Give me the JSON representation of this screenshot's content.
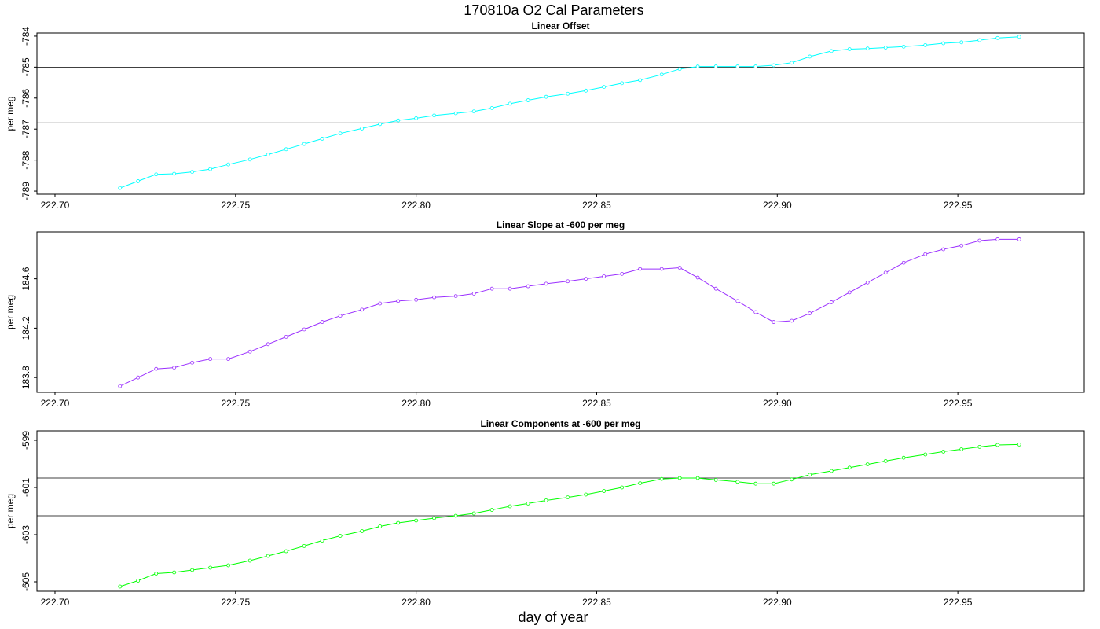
{
  "figure": {
    "title": "170810a   O2 Cal Parameters",
    "xlabel": "day of year"
  },
  "chart_data": [
    {
      "type": "line",
      "title": "Linear Offset",
      "ylabel": "per meg",
      "xlim": [
        222.695,
        222.985
      ],
      "ylim": [
        -789.1,
        -783.9
      ],
      "xticks": [
        "222.70",
        "222.75",
        "222.80",
        "222.85",
        "222.90",
        "222.95"
      ],
      "yticks": [
        "-789",
        "-788",
        "-787",
        "-786",
        "-785",
        "-784"
      ],
      "hlines": [
        -785.0,
        -786.8
      ],
      "color": "#00ffff",
      "series": [
        {
          "x": [
            222.718,
            222.723,
            222.728,
            222.733,
            222.738,
            222.743,
            222.748,
            222.754,
            222.759,
            222.764,
            222.769,
            222.774,
            222.779,
            222.785,
            222.79,
            222.795,
            222.8,
            222.805,
            222.811,
            222.816,
            222.821,
            222.826,
            222.831,
            222.836,
            222.842,
            222.847,
            222.852,
            222.857,
            222.862,
            222.868,
            222.873,
            222.878,
            222.883,
            222.889,
            222.894,
            222.899,
            222.904,
            222.909,
            222.915,
            222.92,
            222.925,
            222.93,
            222.935,
            222.941,
            222.946,
            222.951,
            222.956,
            222.961,
            222.967
          ],
          "values": [
            -788.9,
            -788.68,
            -788.46,
            -788.44,
            -788.38,
            -788.29,
            -788.14,
            -787.98,
            -787.82,
            -787.65,
            -787.48,
            -787.31,
            -787.14,
            -786.98,
            -786.84,
            -786.72,
            -786.65,
            -786.56,
            -786.49,
            -786.43,
            -786.32,
            -786.18,
            -786.07,
            -785.96,
            -785.86,
            -785.76,
            -785.64,
            -785.52,
            -785.42,
            -785.24,
            -785.06,
            -784.98,
            -784.98,
            -784.98,
            -784.98,
            -784.94,
            -784.86,
            -784.66,
            -784.48,
            -784.42,
            -784.4,
            -784.37,
            -784.34,
            -784.29,
            -784.23,
            -784.2,
            -784.13,
            -784.06,
            -784.02
          ]
        }
      ]
    },
    {
      "type": "line",
      "title": "Linear Slope at -600 per meg",
      "ylabel": "per meg",
      "xlim": [
        222.695,
        222.985
      ],
      "ylim": [
        183.68,
        184.98
      ],
      "xticks": [
        "222.70",
        "222.75",
        "222.80",
        "222.85",
        "222.90",
        "222.95"
      ],
      "yticks": [
        "183.8",
        "184.2",
        "184.6"
      ],
      "hlines": [],
      "color": "#9b30ff",
      "series": [
        {
          "x": [
            222.718,
            222.723,
            222.728,
            222.733,
            222.738,
            222.743,
            222.748,
            222.754,
            222.759,
            222.764,
            222.769,
            222.774,
            222.779,
            222.785,
            222.79,
            222.795,
            222.8,
            222.805,
            222.811,
            222.816,
            222.821,
            222.826,
            222.831,
            222.836,
            222.842,
            222.847,
            222.852,
            222.857,
            222.862,
            222.868,
            222.873,
            222.878,
            222.883,
            222.889,
            222.894,
            222.899,
            222.904,
            222.909,
            222.915,
            222.92,
            222.925,
            222.93,
            222.935,
            222.941,
            222.946,
            222.951,
            222.956,
            222.961,
            222.967
          ],
          "values": [
            183.73,
            183.8,
            183.87,
            183.88,
            183.92,
            183.95,
            183.95,
            184.01,
            184.07,
            184.13,
            184.19,
            184.25,
            184.3,
            184.35,
            184.4,
            184.42,
            184.43,
            184.45,
            184.46,
            184.48,
            184.52,
            184.52,
            184.54,
            184.56,
            184.58,
            184.6,
            184.62,
            184.64,
            184.68,
            184.68,
            184.69,
            184.61,
            184.52,
            184.42,
            184.33,
            184.25,
            184.26,
            184.32,
            184.41,
            184.49,
            184.57,
            184.65,
            184.73,
            184.8,
            184.84,
            184.87,
            184.91,
            184.92,
            184.92
          ]
        }
      ]
    },
    {
      "type": "line",
      "title": "Linear Components at -600 per meg",
      "ylabel": "per meg",
      "xlim": [
        222.695,
        222.985
      ],
      "ylim": [
        -605.4,
        -598.6
      ],
      "xticks": [
        "222.70",
        "222.75",
        "222.80",
        "222.85",
        "222.90",
        "222.95"
      ],
      "yticks": [
        "-605",
        "-603",
        "-601",
        "-599"
      ],
      "hlines": [
        -600.6,
        -602.2
      ],
      "color": "#00ff00",
      "series": [
        {
          "x": [
            222.718,
            222.723,
            222.728,
            222.733,
            222.738,
            222.743,
            222.748,
            222.754,
            222.759,
            222.764,
            222.769,
            222.774,
            222.779,
            222.785,
            222.79,
            222.795,
            222.8,
            222.805,
            222.811,
            222.816,
            222.821,
            222.826,
            222.831,
            222.836,
            222.842,
            222.847,
            222.852,
            222.857,
            222.862,
            222.868,
            222.873,
            222.878,
            222.883,
            222.889,
            222.894,
            222.899,
            222.904,
            222.909,
            222.915,
            222.92,
            222.925,
            222.93,
            222.935,
            222.941,
            222.946,
            222.951,
            222.956,
            222.961,
            222.967
          ],
          "values": [
            -605.2,
            -604.95,
            -604.65,
            -604.6,
            -604.5,
            -604.4,
            -604.3,
            -604.1,
            -603.9,
            -603.7,
            -603.48,
            -603.25,
            -603.05,
            -602.85,
            -602.65,
            -602.5,
            -602.4,
            -602.3,
            -602.2,
            -602.1,
            -601.95,
            -601.8,
            -601.68,
            -601.55,
            -601.42,
            -601.3,
            -601.15,
            -601.0,
            -600.82,
            -600.64,
            -600.6,
            -600.6,
            -600.68,
            -600.76,
            -600.84,
            -600.84,
            -600.66,
            -600.46,
            -600.3,
            -600.16,
            -600.02,
            -599.88,
            -599.74,
            -599.6,
            -599.48,
            -599.38,
            -599.28,
            -599.2,
            -599.18
          ]
        }
      ]
    }
  ]
}
